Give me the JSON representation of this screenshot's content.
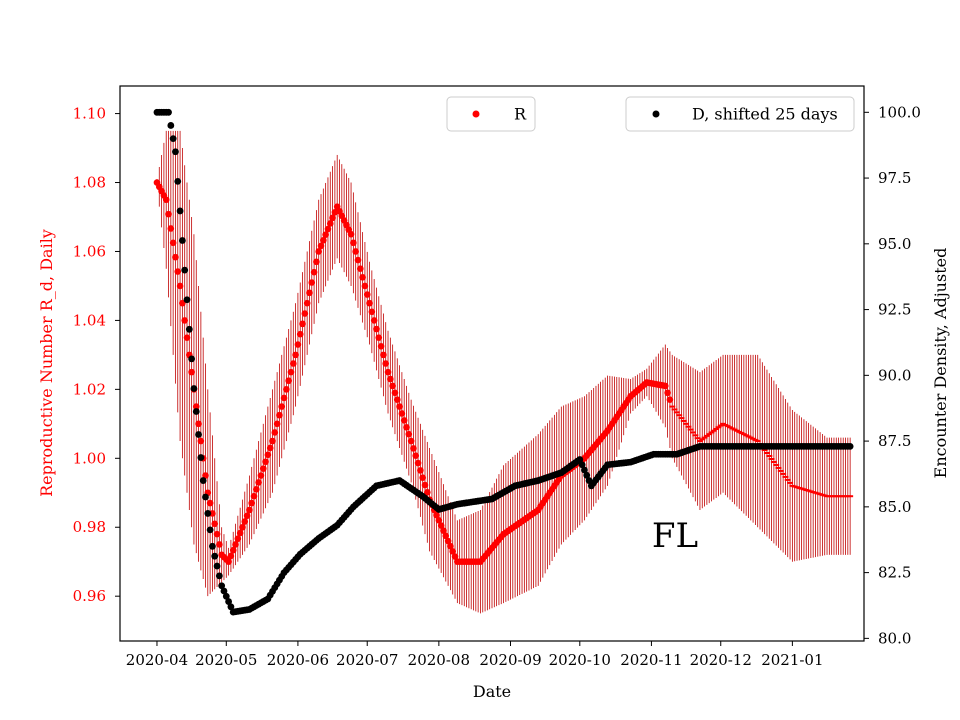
{
  "chart_data": {
    "type": "scatter",
    "xlabel": "Date",
    "ylabel_left": "Reproductive Number R_d, Daily",
    "ylabel_right": "Encounter Density, Adjusted",
    "annotation": "FL",
    "left_axis": {
      "range": [
        0.947,
        1.108
      ],
      "ticks": [
        0.96,
        0.98,
        1.0,
        1.02,
        1.04,
        1.06,
        1.08,
        1.1
      ],
      "tick_labels": [
        "0.96",
        "0.98",
        "1.00",
        "1.02",
        "1.04",
        "1.06",
        "1.08",
        "1.10"
      ],
      "color": "#ff0000"
    },
    "right_axis": {
      "range": [
        79.9,
        101.0
      ],
      "ticks": [
        80.0,
        82.5,
        85.0,
        87.5,
        90.0,
        92.5,
        95.0,
        97.5,
        100.0
      ],
      "tick_labels": [
        "80.0",
        "82.5",
        "85.0",
        "87.5",
        "90.0",
        "92.5",
        "95.0",
        "97.5",
        "100.0"
      ],
      "color": "#000000"
    },
    "x_axis": {
      "range": [
        -16,
        306
      ],
      "tick_days": [
        0,
        30,
        61,
        91,
        122,
        153,
        183,
        214,
        244,
        275
      ],
      "tick_labels": [
        "2020-04",
        "2020-05",
        "2020-06",
        "2020-07",
        "2020-08",
        "2020-09",
        "2020-10",
        "2020-11",
        "2020-12",
        "2021-01"
      ]
    },
    "legend_left": {
      "label": "R",
      "placement": "top-center"
    },
    "legend_right": {
      "label": "D, shifted 25 days",
      "placement": "top-right"
    },
    "r_series": {
      "name": "R",
      "color": "#ff0000",
      "error_color": "#c00000",
      "knots": [
        {
          "day": 0,
          "value": 1.08,
          "err": 0.001
        },
        {
          "day": 4,
          "value": 1.075,
          "err": 0.02
        },
        {
          "day": 10,
          "value": 1.05,
          "err": 0.045
        },
        {
          "day": 16,
          "value": 1.02,
          "err": 0.045
        },
        {
          "day": 22,
          "value": 0.99,
          "err": 0.03
        },
        {
          "day": 28,
          "value": 0.972,
          "err": 0.008
        },
        {
          "day": 31,
          "value": 0.97,
          "err": 0.004
        },
        {
          "day": 40,
          "value": 0.985,
          "err": 0.01
        },
        {
          "day": 50,
          "value": 1.005,
          "err": 0.015
        },
        {
          "day": 60,
          "value": 1.03,
          "err": 0.015
        },
        {
          "day": 70,
          "value": 1.06,
          "err": 0.015
        },
        {
          "day": 78,
          "value": 1.073,
          "err": 0.015
        },
        {
          "day": 84,
          "value": 1.065,
          "err": 0.015
        },
        {
          "day": 92,
          "value": 1.045,
          "err": 0.012
        },
        {
          "day": 100,
          "value": 1.025,
          "err": 0.012
        },
        {
          "day": 110,
          "value": 1.005,
          "err": 0.012
        },
        {
          "day": 118,
          "value": 0.988,
          "err": 0.015
        },
        {
          "day": 130,
          "value": 0.97,
          "err": 0.012
        },
        {
          "day": 140,
          "value": 0.97,
          "err": 0.015
        },
        {
          "day": 150,
          "value": 0.978,
          "err": 0.02
        },
        {
          "day": 165,
          "value": 0.985,
          "err": 0.022
        },
        {
          "day": 175,
          "value": 0.995,
          "err": 0.02
        },
        {
          "day": 185,
          "value": 1.0,
          "err": 0.018
        },
        {
          "day": 195,
          "value": 1.008,
          "err": 0.016
        },
        {
          "day": 205,
          "value": 1.018,
          "err": 0.005
        },
        {
          "day": 212,
          "value": 1.022,
          "err": 0.004
        },
        {
          "day": 220,
          "value": 1.021,
          "err": 0.012
        },
        {
          "day": 223,
          "value": 1.015,
          "err": 0.015
        },
        {
          "day": 235,
          "value": 1.005,
          "err": 0.02
        },
        {
          "day": 245,
          "value": 1.01,
          "err": 0.02
        },
        {
          "day": 260,
          "value": 1.005,
          "err": 0.025
        },
        {
          "day": 275,
          "value": 0.992,
          "err": 0.022
        },
        {
          "day": 290,
          "value": 0.989,
          "err": 0.017
        },
        {
          "day": 300,
          "value": 0.989,
          "err": 0.017
        }
      ]
    },
    "d_series": {
      "name": "D, shifted 25 days",
      "color": "#000000",
      "knots": [
        {
          "day": 0,
          "value": 100.0
        },
        {
          "day": 5,
          "value": 100.0
        },
        {
          "day": 8,
          "value": 98.5
        },
        {
          "day": 12,
          "value": 94.0
        },
        {
          "day": 16,
          "value": 89.5
        },
        {
          "day": 20,
          "value": 86.0
        },
        {
          "day": 24,
          "value": 83.5
        },
        {
          "day": 28,
          "value": 82.0
        },
        {
          "day": 33,
          "value": 81.0
        },
        {
          "day": 40,
          "value": 81.1
        },
        {
          "day": 48,
          "value": 81.5
        },
        {
          "day": 55,
          "value": 82.5
        },
        {
          "day": 62,
          "value": 83.2
        },
        {
          "day": 70,
          "value": 83.8
        },
        {
          "day": 78,
          "value": 84.3
        },
        {
          "day": 85,
          "value": 85.0
        },
        {
          "day": 95,
          "value": 85.8
        },
        {
          "day": 105,
          "value": 86.0
        },
        {
          "day": 115,
          "value": 85.4
        },
        {
          "day": 122,
          "value": 84.9
        },
        {
          "day": 130,
          "value": 85.1
        },
        {
          "day": 145,
          "value": 85.3
        },
        {
          "day": 155,
          "value": 85.8
        },
        {
          "day": 165,
          "value": 86.0
        },
        {
          "day": 175,
          "value": 86.3
        },
        {
          "day": 183,
          "value": 86.8
        },
        {
          "day": 188,
          "value": 85.8
        },
        {
          "day": 195,
          "value": 86.6
        },
        {
          "day": 205,
          "value": 86.7
        },
        {
          "day": 215,
          "value": 87.0
        },
        {
          "day": 225,
          "value": 87.0
        },
        {
          "day": 235,
          "value": 87.3
        },
        {
          "day": 260,
          "value": 87.3
        },
        {
          "day": 300,
          "value": 87.3
        }
      ]
    }
  }
}
